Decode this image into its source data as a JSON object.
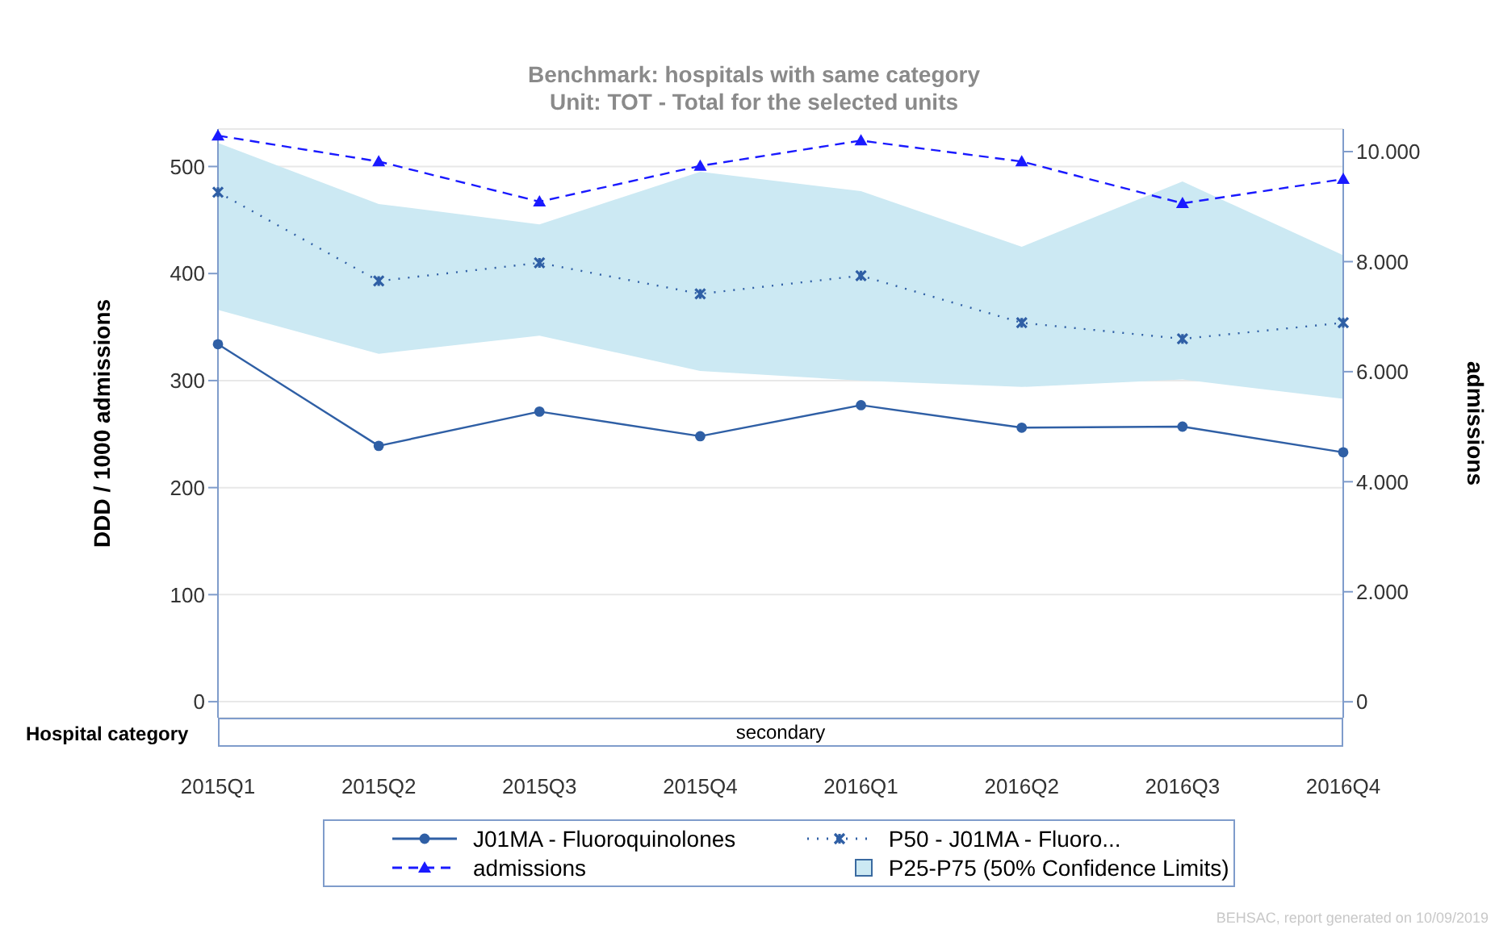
{
  "chart_data": {
    "type": "line",
    "title": "Benchmark: hospitals with same category",
    "subtitle": "Unit: TOT - Total for the selected units",
    "ylabel": "DDD / 1000 admissions",
    "y2label": "admissions",
    "categories": [
      "2015Q1",
      "2015Q2",
      "2015Q3",
      "2015Q4",
      "2016Q1",
      "2016Q2",
      "2016Q3",
      "2016Q4"
    ],
    "series": [
      {
        "name": "J01MA - Fluoroquinolones",
        "color": "#2f5fa5",
        "marker": "circle",
        "line_style": "solid",
        "values": [
          334,
          239,
          271,
          248,
          277,
          256,
          257,
          233
        ]
      },
      {
        "name": "P50 - J01MA - Fluoro...",
        "color": "#2f5fa5",
        "marker": "cross",
        "line_style": "dotted",
        "values": [
          476,
          393,
          410,
          381,
          398,
          354,
          339,
          354
        ],
        "lower": [
          366,
          325,
          342,
          309,
          300,
          294,
          301,
          283
        ],
        "upper": [
          522,
          465,
          446,
          495,
          477,
          425,
          486,
          417
        ]
      },
      {
        "name": "admissions",
        "color": "#1a1aff",
        "marker": "triangle",
        "line_style": "dashed",
        "axis": "y2",
        "values": [
          10290,
          9820,
          9090,
          9740,
          10200,
          9820,
          9060,
          9500
        ]
      }
    ],
    "ylim": [
      -15,
      535
    ],
    "yticks": [
      0,
      100,
      200,
      300,
      400,
      500
    ],
    "y2lim": [
      -290,
      10410
    ],
    "y2ticks": [
      0,
      {
        "value": 2000,
        "label": "2.000"
      },
      {
        "value": 4000,
        "label": "4.000"
      },
      {
        "value": 6000,
        "label": "6.000"
      },
      {
        "value": 8000,
        "label": "8.000"
      },
      {
        "value": 10000,
        "label": "10.000"
      }
    ],
    "grid": "y",
    "legend": "bottom",
    "annotations": [
      "Hospital category",
      "secondary",
      "BEHSAC, report generated on 10/09/2019",
      "P25-P75 (50% Confidence Limits)"
    ]
  }
}
